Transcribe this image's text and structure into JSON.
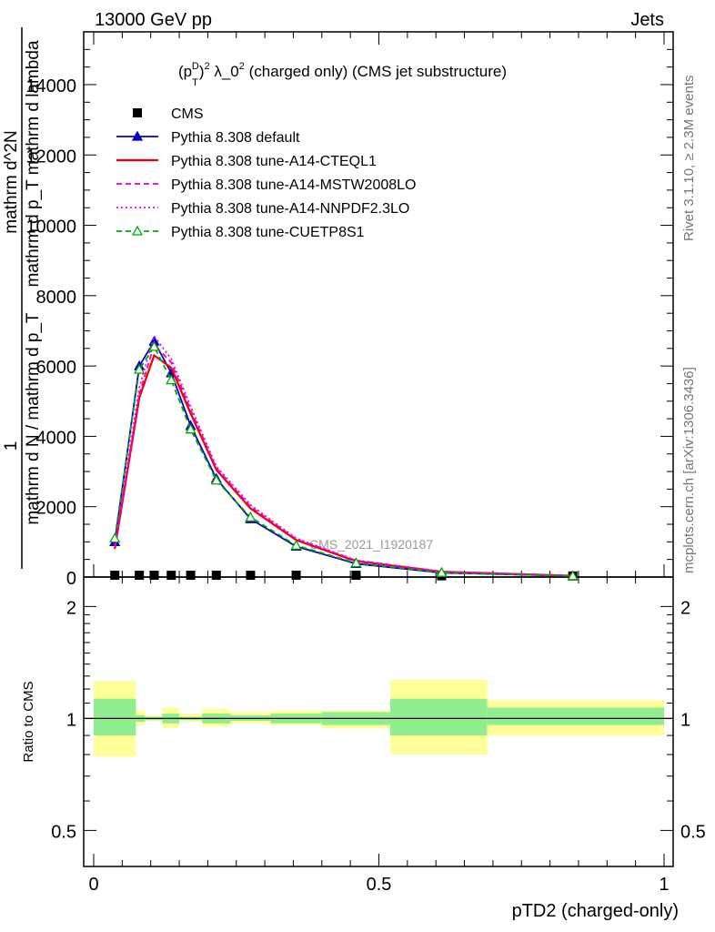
{
  "header": {
    "energy_label": "13000 GeV pp",
    "category_label": "Jets",
    "plot_title": "(p_T^D)^2 λ_0^2 (charged only) (CMS jet substructure)",
    "analysis_watermark": "CMS_2021_I1920187"
  },
  "side_text": {
    "rivet": "Rivet 3.1.10, ≥ 2.3M events",
    "mcplots": "mcplots.cern.ch [arXiv:1306.3436]"
  },
  "axes": {
    "ylabel_main_numerator": "1",
    "ylabel_main_numerator_2": "mathrm d^2N",
    "ylabel_main_denominator_top": "mathrm d p_T mathrm d lambda",
    "ylabel_main_denominator": "mathrm d N / mathrm d p_T",
    "ylabel_ratio": "Ratio to CMS",
    "xlabel": "pTD2 (charged-only)"
  },
  "chart_data": [
    {
      "type": "line",
      "panel": "main",
      "xlim": [
        0,
        1
      ],
      "ylim": [
        0,
        15500
      ],
      "yticks": [
        0,
        2000,
        4000,
        6000,
        8000,
        10000,
        12000,
        14000
      ],
      "ytick_labels": [
        "0",
        "2000",
        "4000",
        "6000",
        "8000",
        "10000",
        "12000",
        "14000"
      ],
      "legend_position": "top-left",
      "series": [
        {
          "name": "CMS",
          "color": "#000000",
          "style": "marker-square",
          "x": [
            0.037,
            0.08,
            0.106,
            0.136,
            0.17,
            0.215,
            0.275,
            0.355,
            0.46,
            0.61,
            0.84
          ],
          "y": [
            25,
            25,
            25,
            25,
            25,
            25,
            25,
            25,
            25,
            10,
            5
          ]
        },
        {
          "name": "Pythia 8.308 default",
          "color": "#0000cc",
          "style": "solid-triangle",
          "x": [
            0.037,
            0.08,
            0.106,
            0.136,
            0.17,
            0.215,
            0.275,
            0.355,
            0.46,
            0.61,
            0.84
          ],
          "y": [
            1000,
            6000,
            6700,
            5800,
            4300,
            2800,
            1650,
            870,
            380,
            120,
            30
          ]
        },
        {
          "name": "Pythia 8.308 tune-A14-CTEQL1",
          "color": "#ee0000",
          "style": "solid",
          "x": [
            0.037,
            0.08,
            0.106,
            0.136,
            0.17,
            0.215,
            0.275,
            0.355,
            0.46,
            0.61,
            0.84
          ],
          "y": [
            800,
            5100,
            6300,
            5950,
            4650,
            3050,
            1950,
            1050,
            450,
            150,
            35
          ]
        },
        {
          "name": "Pythia 8.308 tune-A14-MSTW2008LO",
          "color": "#ee00aa",
          "style": "dashed",
          "x": [
            0.037,
            0.08,
            0.106,
            0.136,
            0.17,
            0.215,
            0.275,
            0.355,
            0.46,
            0.61,
            0.84
          ],
          "y": [
            850,
            5200,
            6600,
            6100,
            4750,
            3100,
            2000,
            1080,
            470,
            155,
            36
          ]
        },
        {
          "name": "Pythia 8.308 tune-A14-NNPDF2.3LO",
          "color": "#ee00ee",
          "style": "dotted",
          "x": [
            0.037,
            0.08,
            0.106,
            0.136,
            0.17,
            0.215,
            0.275,
            0.355,
            0.46,
            0.61,
            0.84
          ],
          "y": [
            900,
            5400,
            6850,
            6200,
            4850,
            3150,
            2050,
            1100,
            480,
            160,
            38
          ]
        },
        {
          "name": "Pythia 8.308 tune-CUETP8S1",
          "color": "#00aa00",
          "style": "dashed-open-triangle",
          "x": [
            0.037,
            0.08,
            0.106,
            0.136,
            0.17,
            0.215,
            0.275,
            0.355,
            0.46,
            0.61,
            0.84
          ],
          "y": [
            1100,
            5900,
            6550,
            5600,
            4200,
            2750,
            1700,
            900,
            400,
            125,
            31
          ]
        }
      ]
    },
    {
      "type": "area",
      "panel": "ratio",
      "xlim": [
        0,
        1
      ],
      "ylim": [
        0.4,
        2.4
      ],
      "log_y": true,
      "yticks": [
        0.5,
        1,
        2
      ],
      "ytick_labels": [
        "0.5",
        "1",
        "2"
      ],
      "xticks": [
        0,
        0.5,
        1
      ],
      "xtick_labels": [
        "0",
        "0.5",
        "1"
      ],
      "reference_line": 1,
      "bins": [
        {
          "x0": 0.0,
          "x1": 0.074,
          "inner": [
            0.9,
            1.13
          ],
          "outer": [
            0.79,
            1.26
          ]
        },
        {
          "x0": 0.074,
          "x1": 0.09,
          "inner": [
            0.98,
            1.02
          ],
          "outer": [
            0.96,
            1.05
          ]
        },
        {
          "x0": 0.09,
          "x1": 0.12,
          "inner": [
            0.99,
            1.01
          ],
          "outer": [
            0.985,
            1.02
          ]
        },
        {
          "x0": 0.12,
          "x1": 0.15,
          "inner": [
            0.97,
            1.03
          ],
          "outer": [
            0.94,
            1.07
          ]
        },
        {
          "x0": 0.15,
          "x1": 0.19,
          "inner": [
            0.99,
            1.01
          ],
          "outer": [
            0.98,
            1.03
          ]
        },
        {
          "x0": 0.19,
          "x1": 0.24,
          "inner": [
            0.97,
            1.03
          ],
          "outer": [
            0.95,
            1.06
          ]
        },
        {
          "x0": 0.24,
          "x1": 0.31,
          "inner": [
            0.985,
            1.02
          ],
          "outer": [
            0.97,
            1.04
          ]
        },
        {
          "x0": 0.31,
          "x1": 0.4,
          "inner": [
            0.97,
            1.03
          ],
          "outer": [
            0.96,
            1.05
          ]
        },
        {
          "x0": 0.4,
          "x1": 0.52,
          "inner": [
            0.96,
            1.04
          ],
          "outer": [
            0.94,
            1.05
          ]
        },
        {
          "x0": 0.52,
          "x1": 0.69,
          "inner": [
            0.9,
            1.13
          ],
          "outer": [
            0.8,
            1.27
          ]
        },
        {
          "x0": 0.69,
          "x1": 1.0,
          "inner": [
            0.96,
            1.07
          ],
          "outer": [
            0.9,
            1.12
          ]
        }
      ],
      "inner_color": "#90ee90",
      "outer_color": "#ffff99"
    }
  ]
}
